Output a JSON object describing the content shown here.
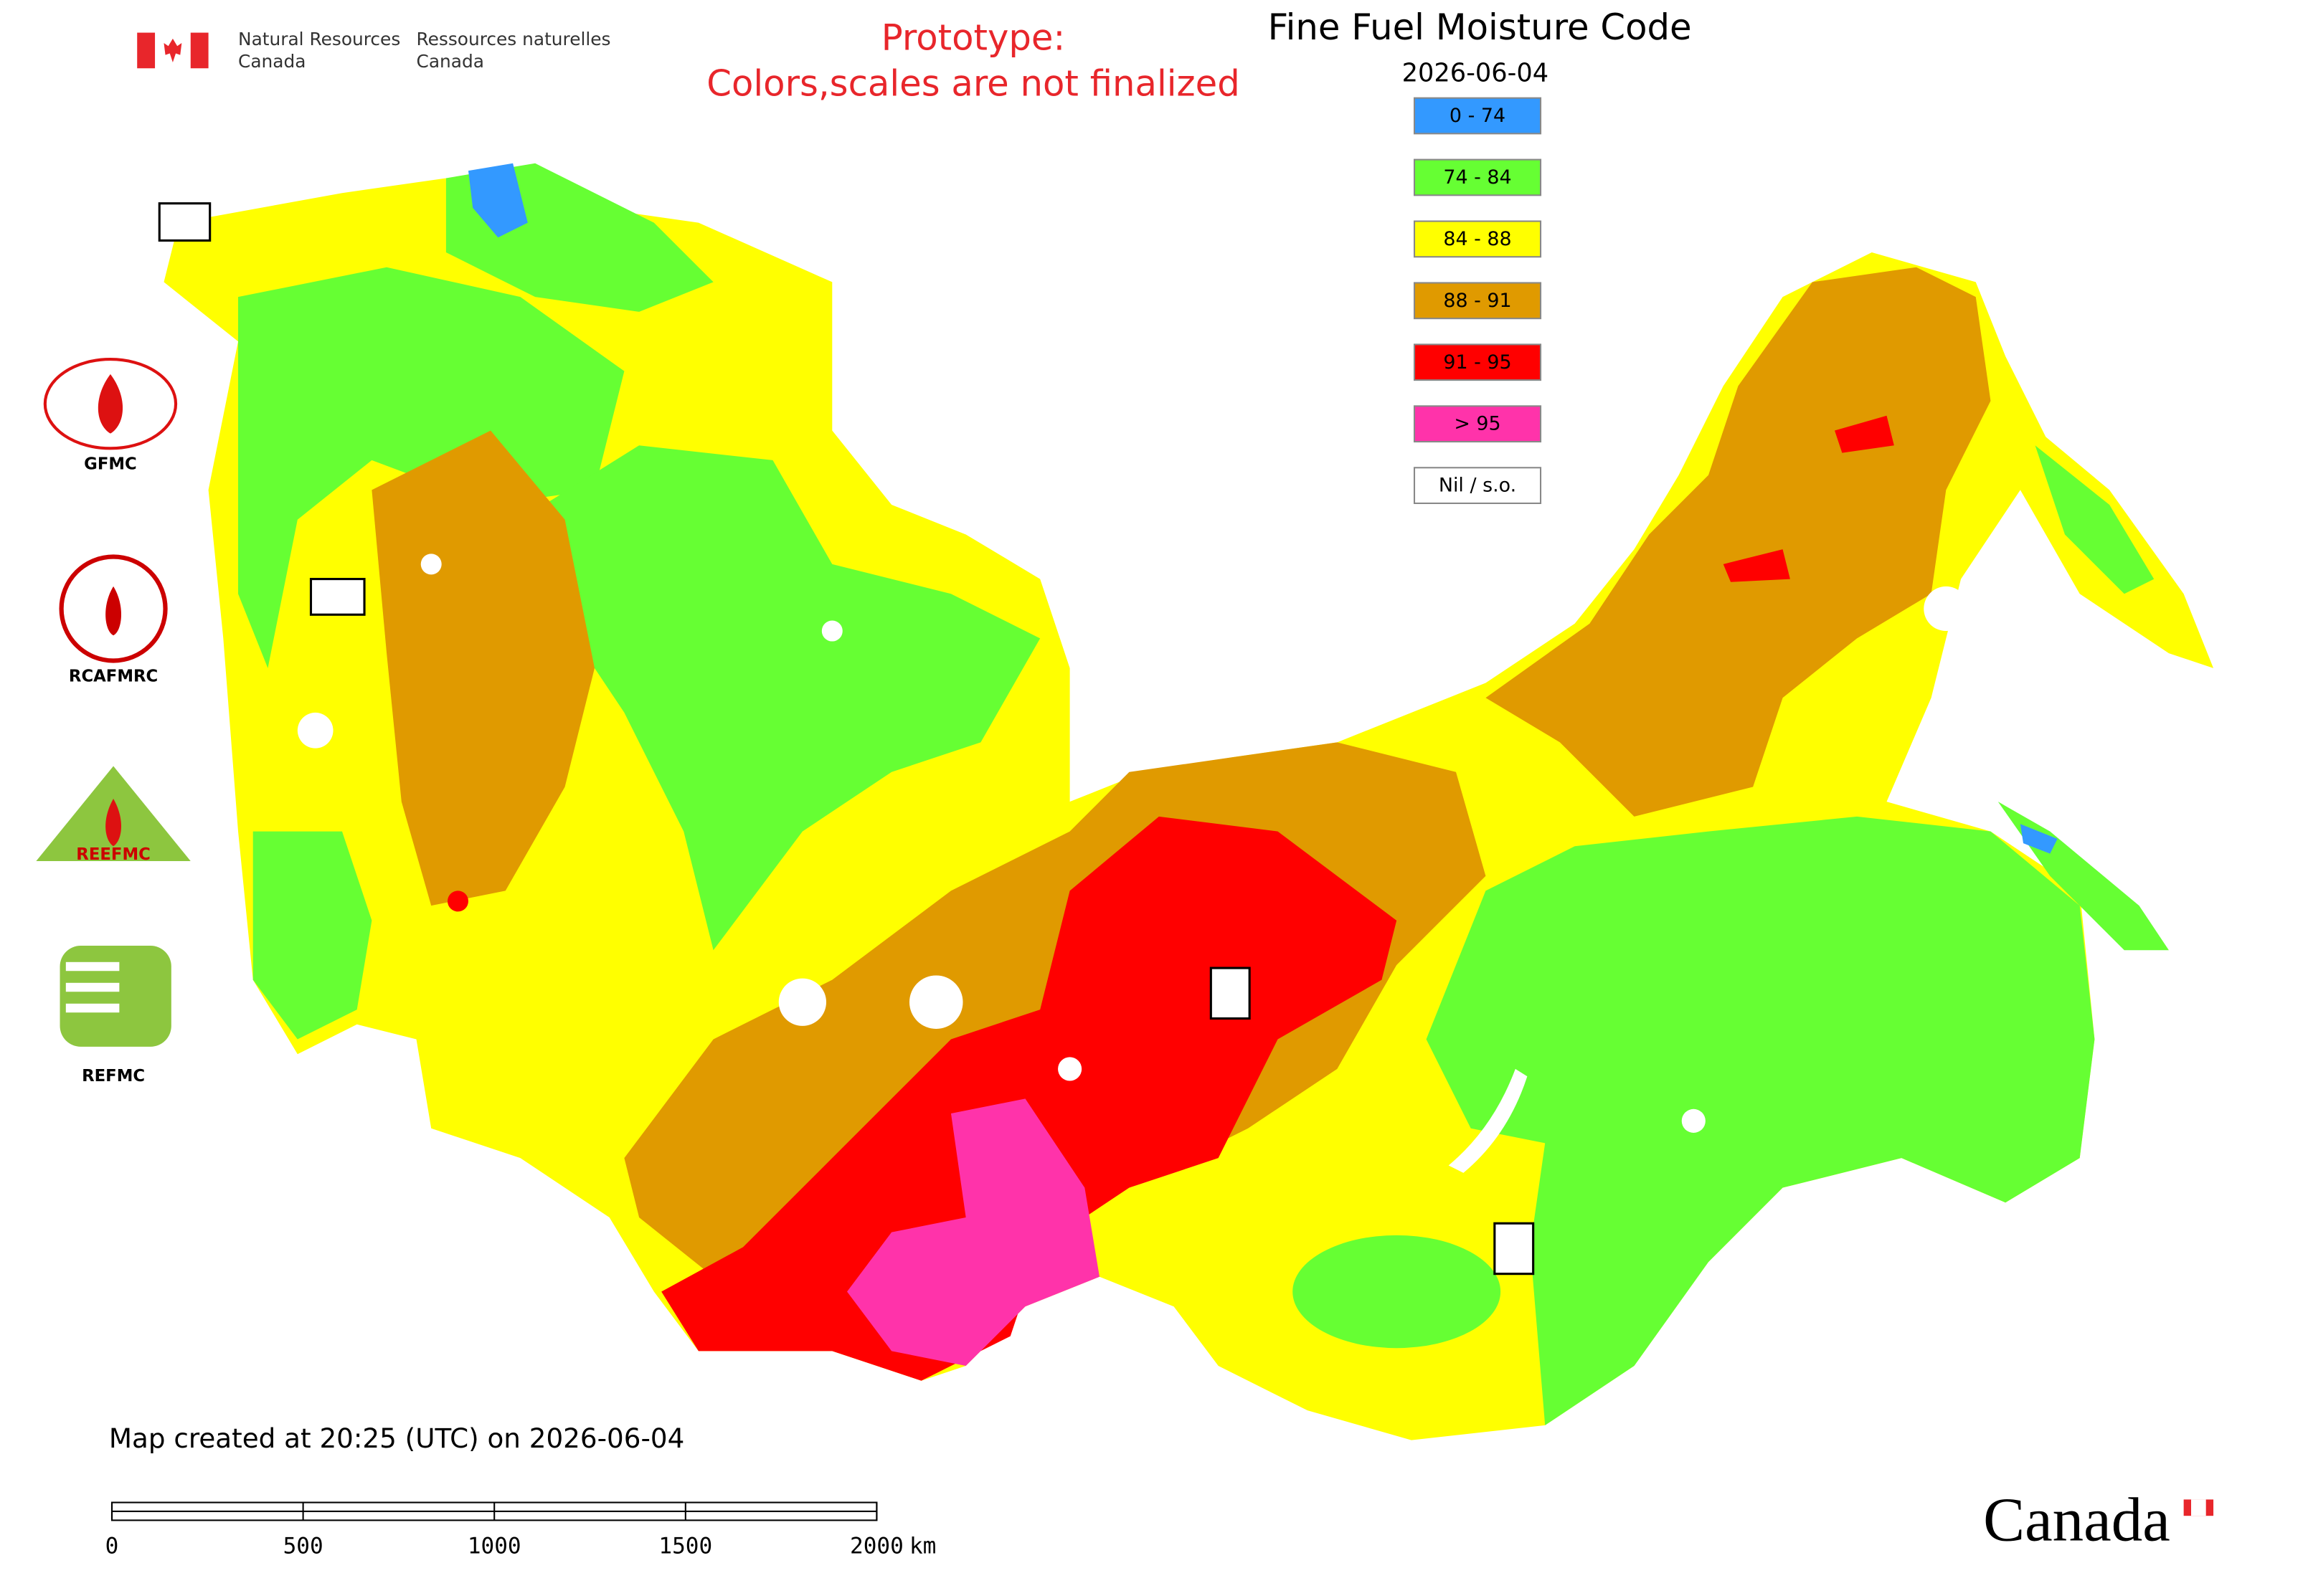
{
  "header": {
    "agency_en": [
      "Natural Resources",
      "Canada"
    ],
    "agency_fr": [
      "Ressources naturelles",
      "Canada"
    ],
    "notice": [
      "Prototype:",
      "Colors,scales are not finalized"
    ]
  },
  "map": {
    "title": "Fine Fuel Moisture Code",
    "date": "2026-06-04",
    "legend": [
      {
        "label": "0 - 74",
        "color": "#3399ff"
      },
      {
        "label": "74 - 84",
        "color": "#66ff33"
      },
      {
        "label": "84 - 88",
        "color": "#ffff00"
      },
      {
        "label": "88 - 91",
        "color": "#e09a00"
      },
      {
        "label": "91 - 95",
        "color": "#ff0000"
      },
      {
        "label": "> 95",
        "color": "#ff33aa"
      },
      {
        "label": "Nil / s.o.",
        "color": "#ffffff"
      }
    ],
    "footer": "Map created at 20:25 (UTC) on 2026-06-04",
    "scale_bar": {
      "ticks": [
        0,
        500,
        1000,
        1500,
        2000
      ],
      "unit": "km"
    }
  },
  "logos": {
    "gfmc": "GFMC",
    "rcafmrc": "RCAFMRC",
    "reefmc": "REEFMC",
    "refmc": "REFMC"
  },
  "wordmark": "Canada"
}
